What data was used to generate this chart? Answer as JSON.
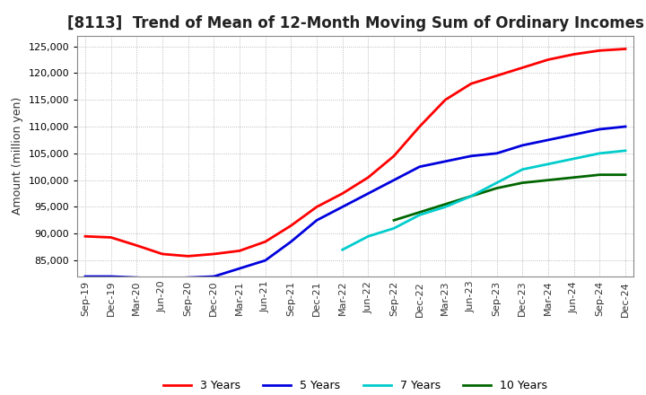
{
  "title": "[8113]  Trend of Mean of 12-Month Moving Sum of Ordinary Incomes",
  "ylabel": "Amount (million yen)",
  "ylim": [
    82000,
    127000
  ],
  "yticks": [
    85000,
    90000,
    95000,
    100000,
    105000,
    110000,
    115000,
    120000,
    125000
  ],
  "background_color": "#ffffff",
  "grid_color": "#aaaaaa",
  "series_order": [
    "10years",
    "7years",
    "5years",
    "3years"
  ],
  "series": {
    "3years": {
      "color": "#ff0000",
      "label": "3 Years",
      "data": [
        [
          "Sep-19",
          89500
        ],
        [
          "Dec-19",
          89300
        ],
        [
          "Mar-20",
          87800
        ],
        [
          "Jun-20",
          86200
        ],
        [
          "Sep-20",
          85800
        ],
        [
          "Dec-20",
          86200
        ],
        [
          "Mar-21",
          86800
        ],
        [
          "Jun-21",
          88500
        ],
        [
          "Sep-21",
          91500
        ],
        [
          "Dec-21",
          95000
        ],
        [
          "Mar-22",
          97500
        ],
        [
          "Jun-22",
          100500
        ],
        [
          "Sep-22",
          104500
        ],
        [
          "Dec-22",
          110000
        ],
        [
          "Mar-23",
          115000
        ],
        [
          "Jun-23",
          118000
        ],
        [
          "Sep-23",
          119500
        ],
        [
          "Dec-23",
          121000
        ],
        [
          "Mar-24",
          122500
        ],
        [
          "Jun-24",
          123500
        ],
        [
          "Sep-24",
          124200
        ],
        [
          "Dec-24",
          124500
        ]
      ]
    },
    "5years": {
      "color": "#0000dd",
      "label": "5 Years",
      "data": [
        [
          "Sep-19",
          82000
        ],
        [
          "Dec-19",
          82000
        ],
        [
          "Mar-20",
          81800
        ],
        [
          "Jun-20",
          81600
        ],
        [
          "Sep-20",
          81800
        ],
        [
          "Dec-20",
          82000
        ],
        [
          "Mar-21",
          83500
        ],
        [
          "Jun-21",
          85000
        ],
        [
          "Sep-21",
          88500
        ],
        [
          "Dec-21",
          92500
        ],
        [
          "Mar-22",
          95000
        ],
        [
          "Jun-22",
          97500
        ],
        [
          "Sep-22",
          100000
        ],
        [
          "Dec-22",
          102500
        ],
        [
          "Mar-23",
          103500
        ],
        [
          "Jun-23",
          104500
        ],
        [
          "Sep-23",
          105000
        ],
        [
          "Dec-23",
          106500
        ],
        [
          "Mar-24",
          107500
        ],
        [
          "Jun-24",
          108500
        ],
        [
          "Sep-24",
          109500
        ],
        [
          "Dec-24",
          110000
        ]
      ]
    },
    "7years": {
      "color": "#00cccc",
      "label": "7 Years",
      "data": [
        [
          "Mar-22",
          87000
        ],
        [
          "Jun-22",
          89500
        ],
        [
          "Sep-22",
          91000
        ],
        [
          "Dec-22",
          93500
        ],
        [
          "Mar-23",
          95000
        ],
        [
          "Jun-23",
          97000
        ],
        [
          "Sep-23",
          99500
        ],
        [
          "Dec-23",
          102000
        ],
        [
          "Mar-24",
          103000
        ],
        [
          "Jun-24",
          104000
        ],
        [
          "Sep-24",
          105000
        ],
        [
          "Dec-24",
          105500
        ]
      ]
    },
    "10years": {
      "color": "#006600",
      "label": "10 Years",
      "data": [
        [
          "Sep-22",
          92500
        ],
        [
          "Dec-22",
          94000
        ],
        [
          "Mar-23",
          95500
        ],
        [
          "Jun-23",
          97000
        ],
        [
          "Sep-23",
          98500
        ],
        [
          "Dec-23",
          99500
        ],
        [
          "Mar-24",
          100000
        ],
        [
          "Jun-24",
          100500
        ],
        [
          "Sep-24",
          101000
        ],
        [
          "Dec-24",
          101000
        ]
      ]
    }
  },
  "xtick_labels": [
    "Sep-19",
    "Dec-19",
    "Mar-20",
    "Jun-20",
    "Sep-20",
    "Dec-20",
    "Mar-21",
    "Jun-21",
    "Sep-21",
    "Dec-21",
    "Mar-22",
    "Jun-22",
    "Sep-22",
    "Dec-22",
    "Mar-23",
    "Jun-23",
    "Sep-23",
    "Dec-23",
    "Mar-24",
    "Jun-24",
    "Sep-24",
    "Dec-24"
  ],
  "title_fontsize": 12,
  "tick_fontsize": 8,
  "label_fontsize": 9
}
